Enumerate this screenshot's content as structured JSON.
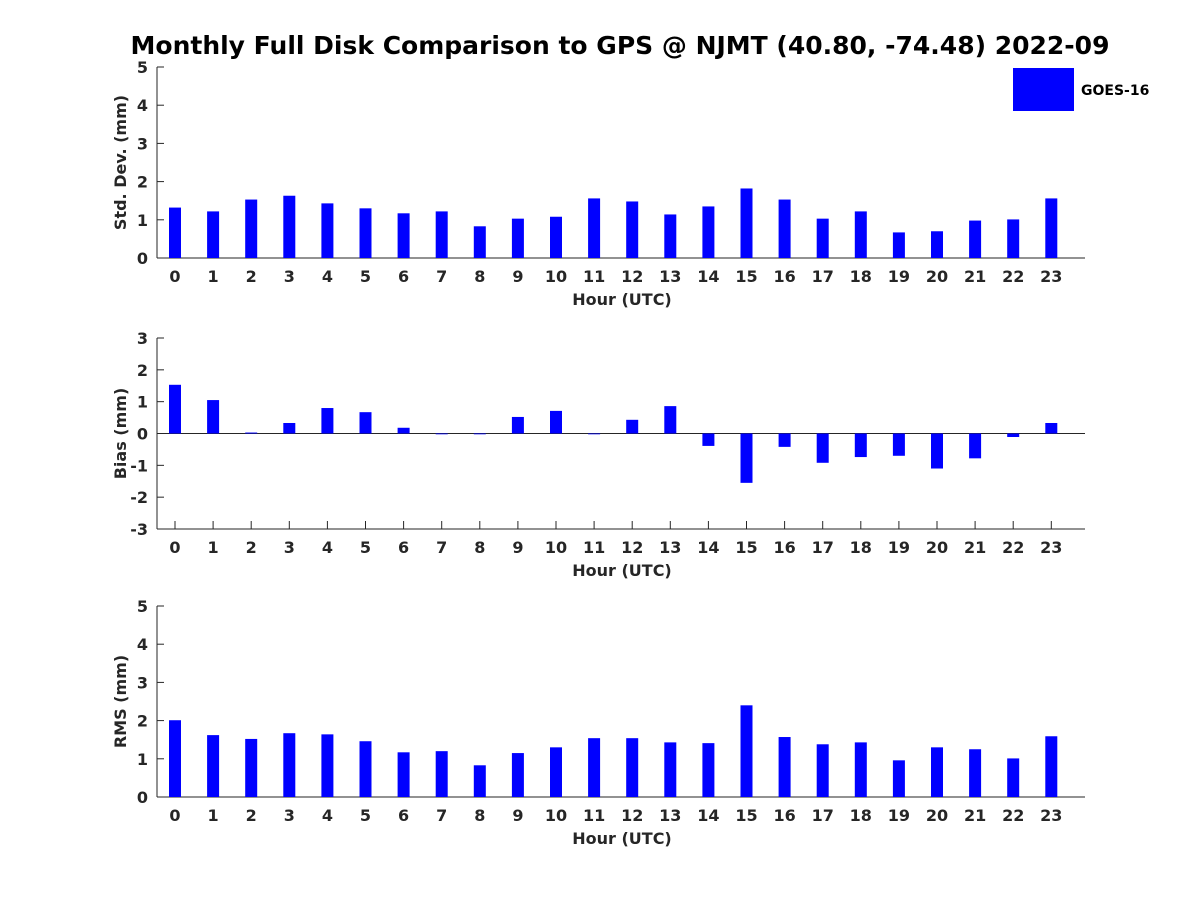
{
  "chart_data": [
    {
      "type": "bar",
      "title": "Monthly Full Disk Comparison to GPS @ NJMT (40.80, -74.48) 2022-09",
      "xlabel": "Hour (UTC)",
      "ylabel": "Std. Dev. (mm)",
      "ylim": [
        0,
        5
      ],
      "yticks": [
        0,
        1,
        2,
        3,
        4,
        5
      ],
      "categories": [
        "0",
        "1",
        "2",
        "3",
        "4",
        "5",
        "6",
        "7",
        "8",
        "9",
        "10",
        "11",
        "12",
        "13",
        "14",
        "15",
        "16",
        "17",
        "18",
        "19",
        "20",
        "21",
        "22",
        "23"
      ],
      "series": [
        {
          "name": "GOES-16",
          "color": "#0000ff",
          "values": [
            1.32,
            1.22,
            1.53,
            1.63,
            1.43,
            1.3,
            1.17,
            1.22,
            0.83,
            1.03,
            1.08,
            1.56,
            1.48,
            1.14,
            1.35,
            1.82,
            1.53,
            1.03,
            1.22,
            0.67,
            0.7,
            0.98,
            1.01,
            1.56
          ]
        }
      ],
      "legend": {
        "position": "top-right",
        "entries": [
          "GOES-16"
        ]
      },
      "grid": false
    },
    {
      "type": "bar",
      "title": "",
      "xlabel": "Hour (UTC)",
      "ylabel": "Bias (mm)",
      "ylim": [
        -3,
        3
      ],
      "yticks": [
        -3,
        -2,
        -1,
        0,
        1,
        2,
        3
      ],
      "categories": [
        "0",
        "1",
        "2",
        "3",
        "4",
        "5",
        "6",
        "7",
        "8",
        "9",
        "10",
        "11",
        "12",
        "13",
        "14",
        "15",
        "16",
        "17",
        "18",
        "19",
        "20",
        "21",
        "22",
        "23"
      ],
      "series": [
        {
          "name": "GOES-16",
          "color": "#0000ff",
          "values": [
            1.53,
            1.05,
            0.03,
            0.33,
            0.8,
            0.67,
            0.18,
            -0.01,
            0.0,
            0.52,
            0.71,
            -0.01,
            0.43,
            0.86,
            -0.39,
            -1.55,
            -0.42,
            -0.92,
            -0.74,
            -0.7,
            -1.1,
            -0.78,
            -0.11,
            0.33
          ]
        }
      ],
      "grid": false
    },
    {
      "type": "bar",
      "title": "",
      "xlabel": "Hour (UTC)",
      "ylabel": "RMS (mm)",
      "ylim": [
        0,
        5
      ],
      "yticks": [
        0,
        1,
        2,
        3,
        4,
        5
      ],
      "categories": [
        "0",
        "1",
        "2",
        "3",
        "4",
        "5",
        "6",
        "7",
        "8",
        "9",
        "10",
        "11",
        "12",
        "13",
        "14",
        "15",
        "16",
        "17",
        "18",
        "19",
        "20",
        "21",
        "22",
        "23"
      ],
      "series": [
        {
          "name": "GOES-16",
          "color": "#0000ff",
          "values": [
            2.01,
            1.62,
            1.52,
            1.67,
            1.64,
            1.46,
            1.17,
            1.2,
            0.83,
            1.15,
            1.3,
            1.54,
            1.54,
            1.43,
            1.41,
            2.4,
            1.57,
            1.38,
            1.43,
            0.96,
            1.3,
            1.25,
            1.01,
            1.59
          ]
        }
      ],
      "grid": false
    }
  ]
}
